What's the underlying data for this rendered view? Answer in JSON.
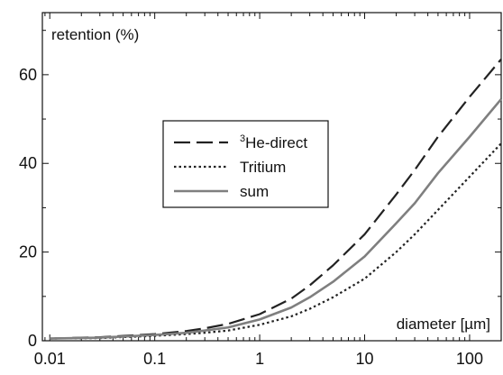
{
  "chart_data": {
    "type": "line",
    "title": "",
    "ylabel": "retention (%)",
    "xlabel": "diameter [µm]",
    "x_scale": "log",
    "xlim": [
      0.0085,
      200
    ],
    "ylim": [
      0,
      74
    ],
    "x_ticks": [
      0.01,
      0.1,
      1,
      10,
      100
    ],
    "x_tick_labels": [
      "0.01",
      "0.1",
      "1",
      "10",
      "100"
    ],
    "y_ticks": [
      0,
      20,
      40,
      60
    ],
    "y_tick_labels": [
      "0",
      "20",
      "40",
      "60"
    ],
    "grid": false,
    "legend_position": "center-left",
    "legend": [
      {
        "sup": "3",
        "label": "He-direct",
        "style": "dashed",
        "color": "#222222"
      },
      {
        "sup": "",
        "label": "Tritium",
        "style": "dotted",
        "color": "#222222"
      },
      {
        "sup": "",
        "label": "sum",
        "style": "solid",
        "color": "#7f7f7f"
      }
    ],
    "x": [
      0.01,
      0.03,
      0.1,
      0.2,
      0.3,
      0.5,
      1,
      2,
      3,
      5,
      10,
      20,
      30,
      50,
      100,
      200
    ],
    "series": [
      {
        "name": "3He-direct",
        "values": [
          0.5,
          0.8,
          1.5,
          2.2,
          2.8,
          3.8,
          6.0,
          9.5,
          12.5,
          17.0,
          24.0,
          33.0,
          38.5,
          46.0,
          55.0,
          63.5
        ]
      },
      {
        "name": "Tritium",
        "values": [
          0.5,
          0.6,
          1.1,
          1.5,
          1.8,
          2.3,
          3.6,
          5.5,
          7.2,
          9.8,
          14.0,
          20.0,
          24.0,
          29.5,
          37.0,
          44.5
        ]
      },
      {
        "name": "sum",
        "values": [
          0.5,
          0.7,
          1.3,
          1.8,
          2.3,
          3.0,
          4.8,
          7.5,
          9.8,
          13.3,
          19.0,
          26.5,
          31.0,
          37.8,
          46.0,
          54.5
        ]
      }
    ]
  }
}
